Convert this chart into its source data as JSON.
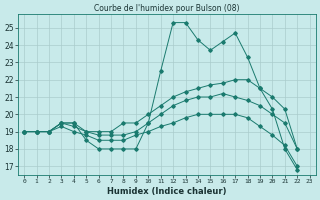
{
  "title": "Courbe de l'humidex pour Bulson (08)",
  "xlabel": "Humidex (Indice chaleur)",
  "ylabel": "",
  "bg_color": "#c8eaea",
  "grid_color": "#aacccc",
  "line_color": "#1a7a6e",
  "xlim": [
    -0.5,
    23.5
  ],
  "ylim": [
    16.5,
    25.8
  ],
  "yticks": [
    17,
    18,
    19,
    20,
    21,
    22,
    23,
    24,
    25
  ],
  "xticks": [
    0,
    1,
    2,
    3,
    4,
    5,
    6,
    7,
    8,
    9,
    10,
    11,
    12,
    13,
    14,
    15,
    16,
    17,
    18,
    19,
    20,
    21,
    22,
    23
  ],
  "series": [
    [
      19.0,
      19.0,
      19.0,
      19.5,
      19.5,
      18.5,
      18.0,
      18.0,
      18.0,
      18.0,
      19.5,
      22.5,
      25.3,
      25.3,
      24.3,
      23.7,
      24.2,
      24.7,
      23.3,
      21.5,
      20.3,
      18.0,
      16.8
    ],
    [
      19.0,
      19.0,
      19.0,
      19.5,
      19.5,
      19.0,
      19.0,
      19.0,
      19.5,
      19.5,
      20.0,
      20.5,
      21.0,
      21.3,
      21.5,
      21.7,
      21.8,
      22.0,
      22.0,
      21.5,
      21.0,
      20.3,
      18.0
    ],
    [
      19.0,
      19.0,
      19.0,
      19.5,
      19.3,
      19.0,
      18.8,
      18.8,
      18.8,
      19.0,
      19.5,
      20.0,
      20.5,
      20.8,
      21.0,
      21.0,
      21.2,
      21.0,
      20.8,
      20.5,
      20.0,
      19.5,
      18.0
    ],
    [
      19.0,
      19.0,
      19.0,
      19.3,
      19.0,
      18.8,
      18.5,
      18.5,
      18.5,
      18.8,
      19.0,
      19.3,
      19.5,
      19.8,
      20.0,
      20.0,
      20.0,
      20.0,
      19.8,
      19.3,
      18.8,
      18.2,
      17.0
    ]
  ]
}
